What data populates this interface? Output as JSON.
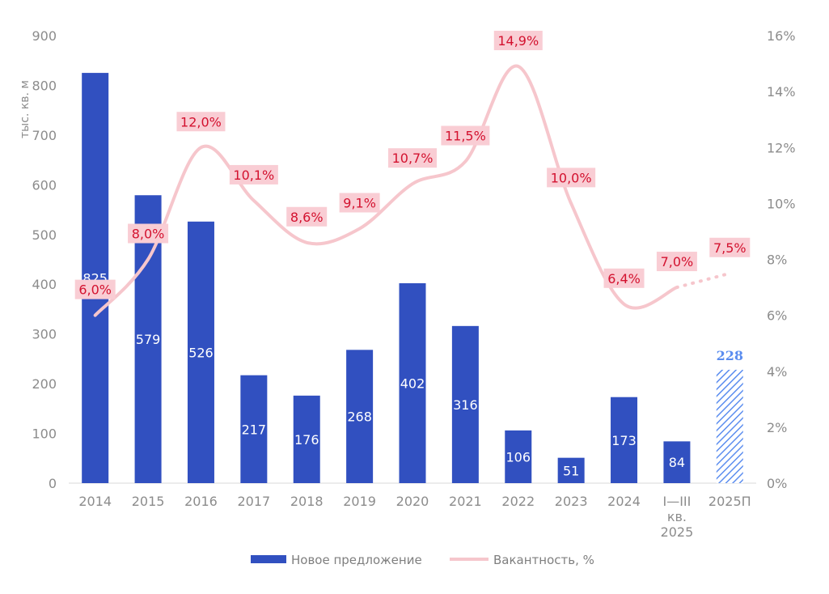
{
  "chart_data": {
    "type": "bar+line",
    "categories": [
      "2014",
      "2015",
      "2016",
      "2017",
      "2018",
      "2019",
      "2020",
      "2021",
      "2022",
      "2023",
      "2024",
      "I—III кв. 2025",
      "2025П"
    ],
    "category_lines": [
      [
        "2014"
      ],
      [
        "2015"
      ],
      [
        "2016"
      ],
      [
        "2017"
      ],
      [
        "2018"
      ],
      [
        "2019"
      ],
      [
        "2020"
      ],
      [
        "2021"
      ],
      [
        "2022"
      ],
      [
        "2023"
      ],
      [
        "2024"
      ],
      [
        "I—III",
        "кв.",
        "2025"
      ],
      [
        "2025П"
      ]
    ],
    "series": [
      {
        "name": "Новое предложение",
        "type": "bar",
        "axis": "left",
        "values": [
          825,
          579,
          526,
          217,
          176,
          268,
          402,
          316,
          106,
          51,
          173,
          84,
          228
        ],
        "labels": [
          "825",
          "579",
          "526",
          "217",
          "176",
          "268",
          "402",
          "316",
          "106",
          "51",
          "173",
          "84",
          "228"
        ],
        "forecast_index": 12
      },
      {
        "name": "Вакантность, %",
        "type": "line",
        "axis": "right",
        "values": [
          6.0,
          8.0,
          12.0,
          10.1,
          8.6,
          9.1,
          10.7,
          11.5,
          14.9,
          10.0,
          6.4,
          7.0,
          7.5
        ],
        "labels": [
          "6,0%",
          "8,0%",
          "12,0%",
          "10,1%",
          "8,6%",
          "9,1%",
          "10,7%",
          "11,5%",
          "14,9%",
          "10,0%",
          "6,4%",
          "7,0%",
          "7,5%"
        ],
        "dotted_from_index": 11
      }
    ],
    "ylabel": "тыс. кв. м",
    "ylim": [
      0,
      900
    ],
    "yticks": [
      "0",
      "100",
      "200",
      "300",
      "400",
      "500",
      "600",
      "700",
      "800",
      "900"
    ],
    "y2lim": [
      0,
      16
    ],
    "y2ticks": [
      "0%",
      "2%",
      "4%",
      "6%",
      "8%",
      "10%",
      "12%",
      "14%",
      "16%"
    ],
    "grid": false,
    "legend_position": "bottom",
    "colors": {
      "bar": "#3150c0",
      "forecast_bar": "#5b8def",
      "line": "#f6c6cc",
      "label_bg": "#f9cdd4",
      "label_text": "#d3122f",
      "axis_text": "#8c8c8c"
    }
  }
}
